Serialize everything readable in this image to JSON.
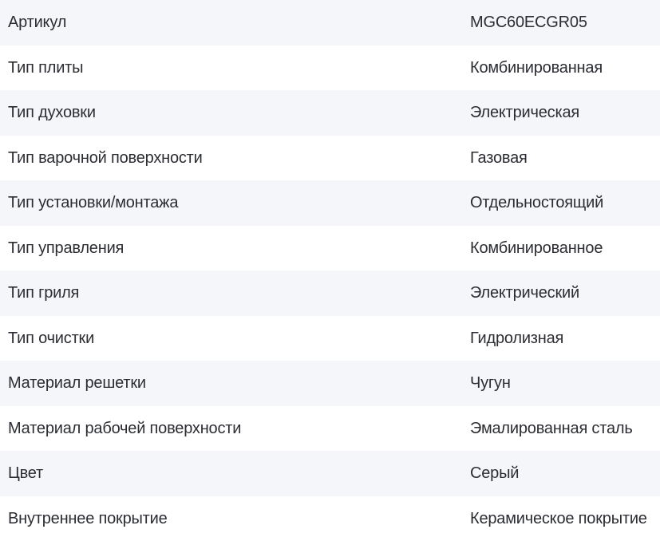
{
  "colors": {
    "row_alt_bg": "#f5f6fa",
    "text": "#2b2d33"
  },
  "specs": {
    "rows": [
      {
        "label": "Артикул",
        "value": "MGC60ECGR05"
      },
      {
        "label": "Тип плиты",
        "value": "Комбинированная"
      },
      {
        "label": "Тип духовки",
        "value": "Электрическая"
      },
      {
        "label": "Тип варочной поверхности",
        "value": "Газовая"
      },
      {
        "label": "Тип установки/монтажа",
        "value": "Отдельностоящий"
      },
      {
        "label": "Тип управления",
        "value": "Комбинированное"
      },
      {
        "label": "Тип гриля",
        "value": "Электрический"
      },
      {
        "label": "Тип очистки",
        "value": "Гидролизная"
      },
      {
        "label": "Материал решетки",
        "value": "Чугун"
      },
      {
        "label": "Материал рабочей поверхности",
        "value": "Эмалированная сталь"
      },
      {
        "label": "Цвет",
        "value": "Серый"
      },
      {
        "label": "Внутреннее покрытие",
        "value": "Керамическое покрытие"
      }
    ]
  }
}
